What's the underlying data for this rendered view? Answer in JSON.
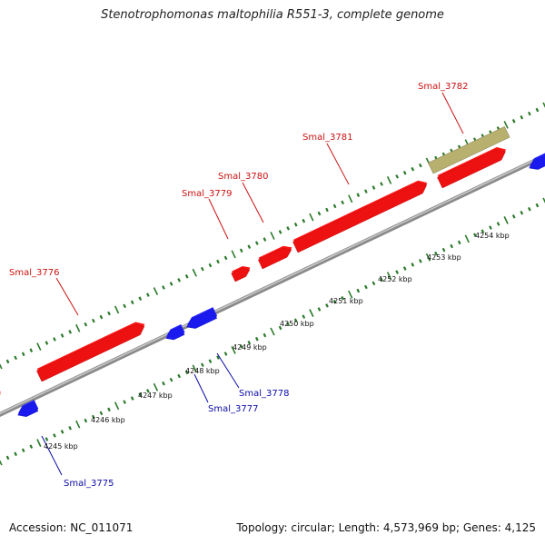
{
  "title": "Stenotrophomonas maltophilia R551-3, complete genome",
  "footer": {
    "accession": "Accession: NC_011071",
    "topology": "Topology: circular; Length: 4,573,969 bp; Genes: 4,125"
  },
  "colors": {
    "forward_gene": "#ee1111",
    "reverse_gene": "#1a1aee",
    "highlight_gene": "#b8b06e",
    "backbone": "#888888",
    "tick_dots": "#2a7a2a"
  },
  "tick_labels": [
    "4245 kbp",
    "4246 kbp",
    "4247 kbp",
    "4248 kbp",
    "4249 kbp",
    "4250 kbp",
    "4251 kbp",
    "4252 kbp",
    "4253 kbp",
    "4254 kbp"
  ],
  "genes": [
    {
      "id": "Smal_3775",
      "label": "Smal_3775",
      "strand": "reverse"
    },
    {
      "id": "Smal_3776",
      "label": "Smal_3776",
      "strand": "forward"
    },
    {
      "id": "Smal_3777",
      "label": "Smal_3777",
      "strand": "reverse"
    },
    {
      "id": "Smal_3778",
      "label": "Smal_3778",
      "strand": "reverse"
    },
    {
      "id": "Smal_3779",
      "label": "Smal_3779",
      "strand": "forward"
    },
    {
      "id": "Smal_3780",
      "label": "Smal_3780",
      "strand": "forward"
    },
    {
      "id": "Smal_3781",
      "label": "Smal_3781",
      "strand": "forward"
    },
    {
      "id": "Smal_3782",
      "label": "Smal_3782",
      "strand": "highlight"
    }
  ]
}
